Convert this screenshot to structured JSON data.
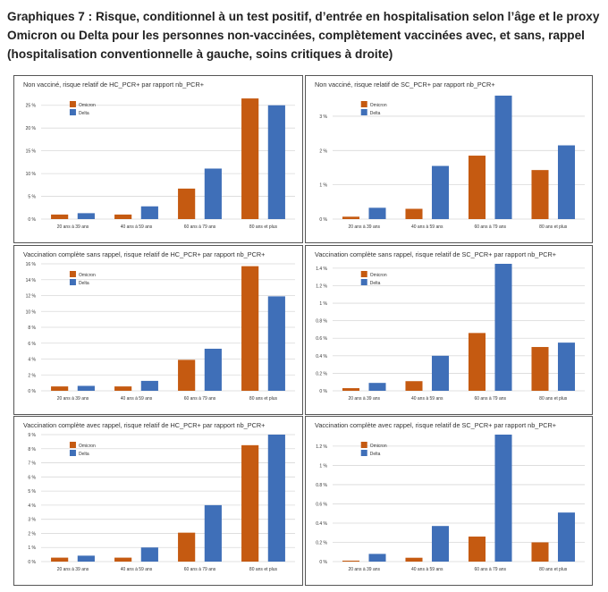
{
  "title": "Graphiques 7 : Risque, conditionnel à un test positif, d’entrée en hospitalisation selon l’âge et le proxy Omicron ou Delta pour les personnes non-vaccinées, complètement vaccinées avec, et sans, rappel (hospitalisation conventionnelle à gauche, soins critiques à droite)",
  "colors": {
    "omicron": "#C55A11",
    "delta": "#3F6FB8",
    "grid": "#d9d9d9",
    "text": "#333333"
  },
  "chart_data": [
    {
      "type": "bar",
      "title": "Non vacciné, risque relatif de HC_PCR+ par rapport nb_PCR+",
      "categories": [
        "20 ans à 39 ans",
        "40 ans à 59 ans",
        "60 ans à 79 ans",
        "80 ans et plus"
      ],
      "series": [
        {
          "name": "Omicron",
          "values": [
            1.0,
            1.0,
            6.7,
            26.5
          ]
        },
        {
          "name": "Delta",
          "values": [
            1.3,
            2.8,
            11.1,
            25.0
          ]
        }
      ],
      "yticks": [
        0,
        5,
        10,
        15,
        20,
        25
      ],
      "ytick_labels": [
        "0 %",
        "5 %",
        "10 %",
        "15 %",
        "20 %",
        "25 %"
      ],
      "ylim": [
        0,
        27.5
      ],
      "legend": [
        "Omicron",
        "Delta"
      ]
    },
    {
      "type": "bar",
      "title": "Non vacciné, risque relatif de SC_PCR+ par rapport nb_PCR+",
      "categories": [
        "20 ans à 39 ans",
        "40 ans à 59 ans",
        "60 ans à 79 ans",
        "80 ans et plus"
      ],
      "series": [
        {
          "name": "Omicron",
          "values": [
            0.07,
            0.3,
            1.85,
            1.43
          ]
        },
        {
          "name": "Delta",
          "values": [
            0.33,
            1.55,
            3.6,
            2.15
          ]
        }
      ],
      "yticks": [
        0,
        1,
        2,
        3
      ],
      "ytick_labels": [
        "0 %",
        "1 %",
        "2 %",
        "3 %"
      ],
      "ylim": [
        0,
        3.65
      ],
      "legend": [
        "Omicron",
        "Delta"
      ]
    },
    {
      "type": "bar",
      "title": "Vaccination complète sans rappel, risque relatif de HC_PCR+ par rapport nb_PCR+",
      "categories": [
        "20 ans à 39 ans",
        "40 ans à 59 ans",
        "60 ans à 79 ans",
        "80 ans et plus"
      ],
      "series": [
        {
          "name": "Omicron",
          "values": [
            0.55,
            0.55,
            3.9,
            15.7
          ]
        },
        {
          "name": "Delta",
          "values": [
            0.62,
            1.25,
            5.3,
            11.9
          ]
        }
      ],
      "yticks": [
        0,
        2,
        4,
        6,
        8,
        10,
        12,
        14,
        16
      ],
      "ytick_labels": [
        "0 %",
        "2 %",
        "4 %",
        "6 %",
        "8 %",
        "10 %",
        "12 %",
        "14 %",
        "16 %"
      ],
      "ylim": [
        0,
        16
      ],
      "legend": [
        "Omicron",
        "Delta"
      ]
    },
    {
      "type": "bar",
      "title": "Vaccination complète sans rappel, risque relatif de SC_PCR+ par rapport nb_PCR+",
      "categories": [
        "20 ans à 39 ans",
        "40 ans à 59 ans",
        "60 ans à 79 ans",
        "80 ans et plus"
      ],
      "series": [
        {
          "name": "Omicron",
          "values": [
            0.03,
            0.11,
            0.66,
            0.5
          ]
        },
        {
          "name": "Delta",
          "values": [
            0.09,
            0.4,
            1.45,
            0.55
          ]
        }
      ],
      "yticks": [
        0,
        0.2,
        0.4,
        0.6,
        0.8,
        1.0,
        1.2,
        1.4
      ],
      "ytick_labels": [
        "0 %",
        "0.2 %",
        "0.4 %",
        "0.6 %",
        "0.8 %",
        "1 %",
        "1.2 %",
        "1.4 %"
      ],
      "ylim": [
        0,
        1.45
      ],
      "legend": [
        "Omicron",
        "Delta"
      ]
    },
    {
      "type": "bar",
      "title": "Vaccination complète avec rappel, risque relatif de HC_PCR+ par rapport nb_PCR+",
      "categories": [
        "20 ans à 39 ans",
        "40 ans à 59 ans",
        "60 ans à 79 ans",
        "80 ans et plus"
      ],
      "series": [
        {
          "name": "Omicron",
          "values": [
            0.28,
            0.28,
            2.05,
            8.25
          ]
        },
        {
          "name": "Delta",
          "values": [
            0.42,
            1.0,
            4.0,
            9.0
          ]
        }
      ],
      "yticks": [
        0,
        1,
        2,
        3,
        4,
        5,
        6,
        7,
        8,
        9
      ],
      "ytick_labels": [
        "0 %",
        "1 %",
        "2 %",
        "3 %",
        "4 %",
        "5 %",
        "6 %",
        "7 %",
        "8 %",
        "9 %"
      ],
      "ylim": [
        0,
        9
      ],
      "legend": [
        "Omicron",
        "Delta"
      ]
    },
    {
      "type": "bar",
      "title": "Vaccination complète avec rappel, risque relatif de SC_PCR+ par rapport nb_PCR+",
      "categories": [
        "20 ans à 39 ans",
        "40 ans à 59 ans",
        "60 ans à 79 ans",
        "80 ans et plus"
      ],
      "series": [
        {
          "name": "Omicron",
          "values": [
            0.01,
            0.04,
            0.26,
            0.2
          ]
        },
        {
          "name": "Delta",
          "values": [
            0.08,
            0.37,
            1.32,
            0.51
          ]
        }
      ],
      "yticks": [
        0,
        0.2,
        0.4,
        0.6,
        0.8,
        1.0,
        1.2
      ],
      "ytick_labels": [
        "0 %",
        "0.2 %",
        "0.4 %",
        "0.6 %",
        "0.8 %",
        "1 %",
        "1.2 %"
      ],
      "ylim": [
        0,
        1.32
      ],
      "legend": [
        "Omicron",
        "Delta"
      ]
    }
  ]
}
